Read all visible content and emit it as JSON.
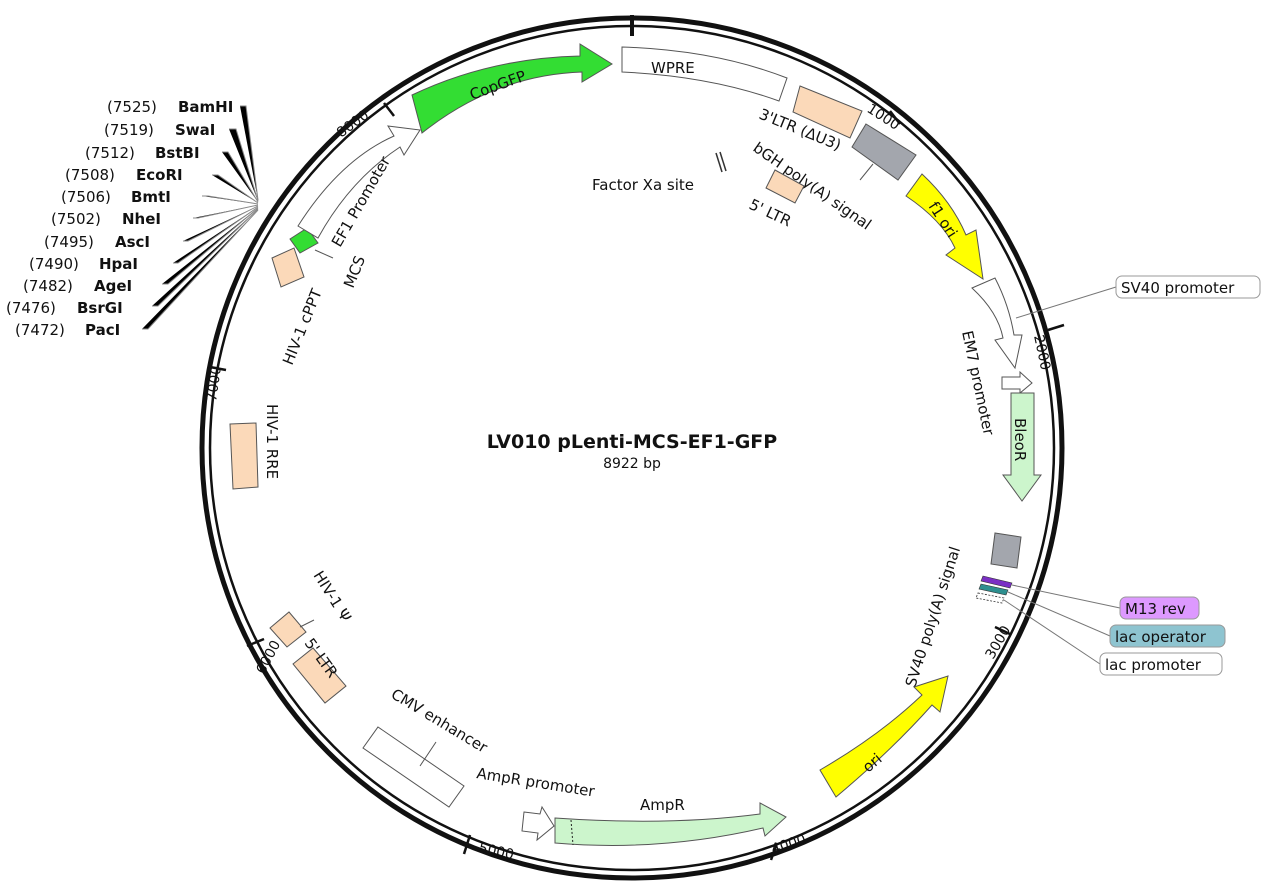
{
  "title": "LV010 pLenti-MCS-EF1-GFP",
  "length_label": "8922 bp",
  "ticks": [
    "1000",
    "2000",
    "3000",
    "4000",
    "5000",
    "6000",
    "7000",
    "8000"
  ],
  "colors": {
    "backbone": "#111111",
    "green": "#33dd33",
    "light_green": "#ccf5cc",
    "yellow": "#ffff00",
    "ltr": "#fbd9b9",
    "gray": "#a3a6ad",
    "white": "#ffffff",
    "m13": "#dd99ff",
    "lac_operator": "#8ec4d0",
    "purple_site": "#7a2fc4",
    "teal_site": "#2e8f8f"
  },
  "features": [
    {
      "name": "CopGFP",
      "color": "green"
    },
    {
      "name": "WPRE",
      "color": "white"
    },
    {
      "name": "3'LTR (ΔU3)",
      "color": "ltr"
    },
    {
      "name": "bGH poly(A) signal",
      "color": "gray"
    },
    {
      "name": "f1 ori",
      "color": "yellow"
    },
    {
      "name": "SV40 promoter",
      "color": "white"
    },
    {
      "name": "EM7 promoter",
      "color": "white"
    },
    {
      "name": "BleoR",
      "color": "light_green"
    },
    {
      "name": "SV40 poly(A) signal",
      "color": "gray"
    },
    {
      "name": "M13 rev",
      "color": "m13"
    },
    {
      "name": "lac operator",
      "color": "lac_operator"
    },
    {
      "name": "lac promoter",
      "color": "white"
    },
    {
      "name": "ori",
      "color": "yellow"
    },
    {
      "name": "AmpR",
      "color": "light_green"
    },
    {
      "name": "AmpR promoter",
      "color": "white"
    },
    {
      "name": "CMV enhancer",
      "color": "white"
    },
    {
      "name": "5' LTR",
      "color": "ltr"
    },
    {
      "name": "HIV-1 Ψ",
      "color": "ltr"
    },
    {
      "name": "HIV-1 RRE",
      "color": "ltr"
    },
    {
      "name": "HIV-1 cPPT",
      "color": "ltr"
    },
    {
      "name": "MCS",
      "color": "green"
    },
    {
      "name": "EF1 Promoter",
      "color": "white"
    },
    {
      "name": "Factor Xa site",
      "color": "white"
    }
  ],
  "inner_labels": {
    "five_ltr_inner": "5' LTR"
  },
  "enzymes": [
    {
      "pos": "(7525)",
      "name": "BamHI"
    },
    {
      "pos": "(7519)",
      "name": "SwaI"
    },
    {
      "pos": "(7512)",
      "name": "BstBI"
    },
    {
      "pos": "(7508)",
      "name": "EcoRI"
    },
    {
      "pos": "(7506)",
      "name": "BmtI"
    },
    {
      "pos": "(7502)",
      "name": "NheI"
    },
    {
      "pos": "(7495)",
      "name": "AscI"
    },
    {
      "pos": "(7490)",
      "name": "HpaI"
    },
    {
      "pos": "(7482)",
      "name": "AgeI"
    },
    {
      "pos": "(7476)",
      "name": "BsrGI"
    },
    {
      "pos": "(7472)",
      "name": "PacI"
    }
  ]
}
